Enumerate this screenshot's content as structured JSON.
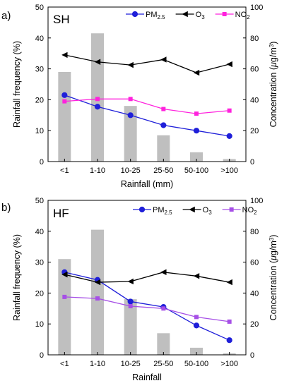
{
  "chart_data": [
    {
      "type": "bar+line",
      "panel_label": "a)",
      "site_label": "SH",
      "xlabel": "Rainfall (mm)",
      "ylabel_left": "Rainfall frequency (%)",
      "ylabel_right": "Concentration (μg/m³)",
      "ylabel_right_parts": {
        "text": "Concentration (",
        "mu": "μ",
        "unit": "g/m",
        "exp": "3",
        "close": ")"
      },
      "ylim_left": [
        0,
        50
      ],
      "yticks_left": [
        "0",
        "10",
        "20",
        "30",
        "40",
        "50"
      ],
      "ylim_right": [
        0,
        100
      ],
      "yticks_right": [
        "0",
        "20",
        "40",
        "60",
        "80",
        "100"
      ],
      "categories": [
        "<1",
        "1-10",
        "10-25",
        "25-50",
        "50-100",
        ">100"
      ],
      "bars": {
        "axis": "left",
        "color": "#bfbfbf",
        "values": [
          29,
          41.5,
          18,
          8.5,
          3,
          0.8
        ]
      },
      "series": [
        {
          "name": "PM",
          "sub": "2.5",
          "axis": "right",
          "color": "#1f1fd9",
          "marker": "circle",
          "values": [
            43,
            35.5,
            30,
            23.5,
            20,
            16.5
          ]
        },
        {
          "name": "O",
          "sub": "3",
          "axis": "right",
          "color": "#000000",
          "marker": "triangle-left",
          "values": [
            69,
            64.5,
            62.5,
            66,
            57.5,
            63
          ]
        },
        {
          "name": "NO",
          "sub": "2",
          "axis": "right",
          "color": "#ff22dd",
          "marker": "square",
          "values": [
            39,
            40.5,
            40.5,
            34,
            31,
            33
          ]
        }
      ]
    },
    {
      "type": "bar+line",
      "panel_label": "b)",
      "site_label": "HF",
      "xlabel": "Rainfall",
      "ylabel_left": "Rainfall frequency (%)",
      "ylabel_right": "Concentration (μg/m³)",
      "ylabel_right_parts": {
        "text": "Concentration (",
        "mu": "μ",
        "unit": "g/m",
        "exp": "3",
        "close": ")"
      },
      "ylim_left": [
        0,
        50
      ],
      "yticks_left": [
        "0",
        "10",
        "20",
        "30",
        "40",
        "50"
      ],
      "ylim_right": [
        0,
        100
      ],
      "yticks_right": [
        "0",
        "20",
        "40",
        "60",
        "80",
        "100"
      ],
      "categories": [
        "<1",
        "1-10",
        "10-25",
        "25-50",
        "50-100",
        ">100"
      ],
      "bars": {
        "axis": "left",
        "color": "#bfbfbf",
        "values": [
          31,
          40.5,
          18,
          7,
          2.3,
          0.5
        ]
      },
      "series": [
        {
          "name": "PM",
          "sub": "2.5",
          "axis": "right",
          "color": "#1f1fd9",
          "marker": "circle",
          "values": [
            53.5,
            48.5,
            34.5,
            31,
            19,
            9.5
          ]
        },
        {
          "name": "O",
          "sub": "3",
          "axis": "right",
          "color": "#000000",
          "marker": "triangle-left",
          "values": [
            52,
            47,
            47.5,
            53.5,
            51,
            47
          ]
        },
        {
          "name": "NO",
          "sub": "2",
          "axis": "right",
          "color": "#a64fe6",
          "marker": "square",
          "values": [
            37.5,
            36.5,
            31.5,
            30,
            24.5,
            21.5
          ]
        }
      ]
    }
  ]
}
